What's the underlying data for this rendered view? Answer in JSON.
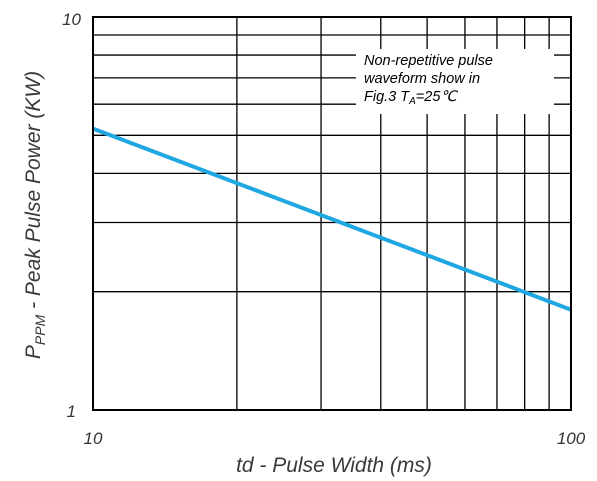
{
  "chart_data": {
    "type": "line",
    "x_scale": "log",
    "y_scale": "log",
    "xlim": [
      10,
      100
    ],
    "ylim": [
      1,
      10
    ],
    "xlabel": "td - Pulse Width (ms)",
    "ylabel": {
      "main": "P",
      "subscript": "PPM",
      "rest": " - Peak Pulse Power  (KW)"
    },
    "x_tick_labels": [
      {
        "value": 10,
        "label": "10"
      },
      {
        "value": 100,
        "label": "100"
      }
    ],
    "y_tick_labels": [
      {
        "value": 1,
        "label": "1"
      },
      {
        "value": 10,
        "label": "10"
      }
    ],
    "x_gridlines": [
      10,
      20,
      30,
      40,
      50,
      60,
      70,
      80,
      90,
      100
    ],
    "y_gridlines": [
      1,
      2,
      3,
      4,
      5,
      6,
      7,
      8,
      9,
      10
    ],
    "grid": true,
    "annotation": {
      "line1": "Non-repetitive pulse",
      "line2": "waveform show in",
      "line3_prefix": "Fig.3  T",
      "line3_sub": "A",
      "line3_suffix": "=25℃"
    },
    "series": [
      {
        "x": [
          10,
          100
        ],
        "y": [
          5.2,
          1.8
        ],
        "color": "#1ea7e1"
      }
    ]
  }
}
